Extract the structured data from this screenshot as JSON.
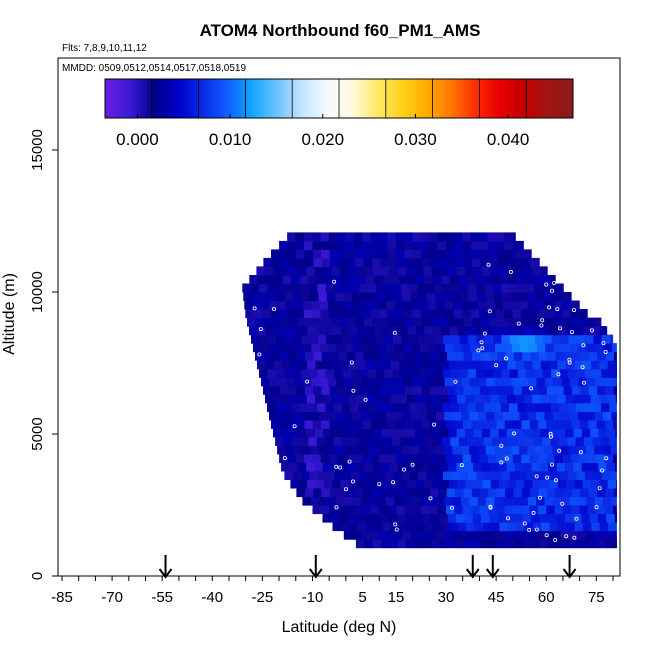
{
  "chart_data": {
    "type": "heatmap",
    "title": "ATOM4 Northbound f60_PM1_AMS",
    "flights_label": "Flts: 7,8,9,10,11,12",
    "dates_label": "MMDD: 0509,0512,0514,0517,0518,0519",
    "xlabel": "Latitude (deg N)",
    "ylabel": "Altitude (m)",
    "x_ticks": [
      "-85",
      "-70",
      "-55",
      "-40",
      "-25",
      "-10",
      "5",
      "15",
      "30",
      "45",
      "60",
      "75"
    ],
    "x_tick_values": [
      -85,
      -70,
      -55,
      -40,
      -25,
      -10,
      5,
      15,
      30,
      45,
      60,
      75
    ],
    "y_ticks": [
      "0",
      "5000",
      "10000",
      "15000"
    ],
    "y_tick_values": [
      0,
      5000,
      10000,
      15000
    ],
    "xlim": [
      -87,
      83
    ],
    "ylim": [
      0,
      18000
    ],
    "colorbar": {
      "ticks": [
        "0.000",
        "0.010",
        "0.020",
        "0.030",
        "0.040"
      ],
      "tick_values": [
        0.0,
        0.01,
        0.02,
        0.03,
        0.04
      ],
      "range": [
        -0.0035,
        0.047
      ],
      "colors": [
        "#6a1ee0",
        "#3b1ad8",
        "#00008b",
        "#0000c8",
        "#0a2de8",
        "#0f60ff",
        "#14a8ff",
        "#6ec2ff",
        "#c6e4ff",
        "#f4fbff",
        "#fffae0",
        "#ffeb6e",
        "#ffd21e",
        "#ffae00",
        "#ff7a00",
        "#ff3000",
        "#e80000",
        "#c40000",
        "#a01414",
        "#8b1a1a"
      ]
    },
    "arrows_latitude": [
      -54,
      -9,
      38,
      44,
      67
    ],
    "data_extent": {
      "lat_min_by_altitude": [
        [
          1000,
          3
        ],
        [
          1500,
          -3
        ],
        [
          2500,
          -13
        ],
        [
          3500,
          -19
        ],
        [
          5000,
          -22
        ],
        [
          7000,
          -26
        ],
        [
          9000,
          -30
        ],
        [
          10000,
          -31
        ],
        [
          11000,
          -24
        ],
        [
          12000,
          -16
        ]
      ],
      "lat_max": 81,
      "alt_top": 12000
    },
    "value_field": {
      "base": 0.002,
      "enhanced_region": {
        "lat": [
          30,
          81
        ],
        "alt": [
          1500,
          8500
        ],
        "value": 0.007
      },
      "peak": {
        "lat": 54,
        "alt": 8200,
        "value": 0.013
      }
    }
  }
}
